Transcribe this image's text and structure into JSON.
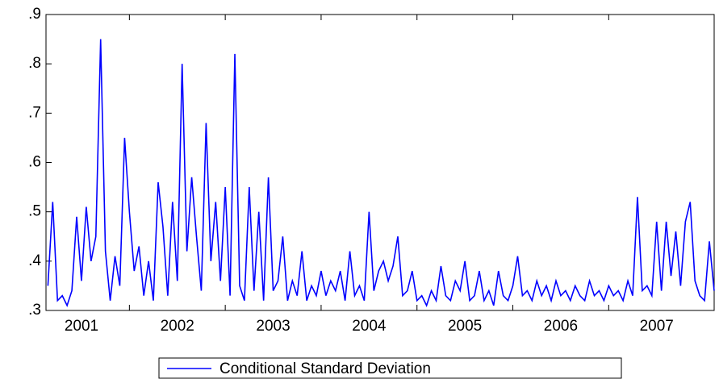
{
  "chart_data": {
    "type": "line",
    "x": [
      2001.15,
      2001.2,
      2001.25,
      2001.3,
      2001.35,
      2001.4,
      2001.45,
      2001.5,
      2001.55,
      2001.6,
      2001.65,
      2001.7,
      2001.75,
      2001.8,
      2001.85,
      2001.9,
      2001.95,
      2002.0,
      2002.05,
      2002.1,
      2002.15,
      2002.2,
      2002.25,
      2002.3,
      2002.35,
      2002.4,
      2002.45,
      2002.5,
      2002.55,
      2002.6,
      2002.65,
      2002.7,
      2002.75,
      2002.8,
      2002.85,
      2002.9,
      2002.95,
      2003.0,
      2003.05,
      2003.1,
      2003.15,
      2003.2,
      2003.25,
      2003.3,
      2003.35,
      2003.4,
      2003.45,
      2003.5,
      2003.55,
      2003.6,
      2003.65,
      2003.7,
      2003.75,
      2003.8,
      2003.85,
      2003.9,
      2003.95,
      2004.0,
      2004.05,
      2004.1,
      2004.15,
      2004.2,
      2004.25,
      2004.3,
      2004.35,
      2004.4,
      2004.45,
      2004.5,
      2004.55,
      2004.6,
      2004.65,
      2004.7,
      2004.75,
      2004.8,
      2004.85,
      2004.9,
      2004.95,
      2005.0,
      2005.05,
      2005.1,
      2005.15,
      2005.2,
      2005.25,
      2005.3,
      2005.35,
      2005.4,
      2005.45,
      2005.5,
      2005.55,
      2005.6,
      2005.65,
      2005.7,
      2005.75,
      2005.8,
      2005.85,
      2005.9,
      2005.95,
      2006.0,
      2006.05,
      2006.1,
      2006.15,
      2006.2,
      2006.25,
      2006.3,
      2006.35,
      2006.4,
      2006.45,
      2006.5,
      2006.55,
      2006.6,
      2006.65,
      2006.7,
      2006.75,
      2006.8,
      2006.85,
      2006.9,
      2006.95,
      2007.0,
      2007.05,
      2007.1,
      2007.15,
      2007.2,
      2007.25,
      2007.3,
      2007.35,
      2007.4,
      2007.45,
      2007.5,
      2007.55,
      2007.6,
      2007.65,
      2007.7,
      2007.75,
      2007.8,
      2007.85,
      2007.9,
      2007.95,
      2008.0,
      2008.05,
      2008.1
    ],
    "series": [
      {
        "name": "Conditional Standard Deviation",
        "color": "#0000ff",
        "values": [
          0.35,
          0.52,
          0.32,
          0.33,
          0.31,
          0.34,
          0.49,
          0.36,
          0.51,
          0.4,
          0.45,
          0.85,
          0.42,
          0.32,
          0.41,
          0.35,
          0.65,
          0.5,
          0.38,
          0.43,
          0.33,
          0.4,
          0.32,
          0.56,
          0.47,
          0.33,
          0.52,
          0.36,
          0.8,
          0.42,
          0.57,
          0.45,
          0.34,
          0.68,
          0.4,
          0.52,
          0.36,
          0.55,
          0.33,
          0.82,
          0.35,
          0.32,
          0.55,
          0.34,
          0.5,
          0.32,
          0.57,
          0.34,
          0.36,
          0.45,
          0.32,
          0.36,
          0.33,
          0.42,
          0.32,
          0.35,
          0.33,
          0.38,
          0.33,
          0.36,
          0.34,
          0.38,
          0.32,
          0.42,
          0.33,
          0.35,
          0.32,
          0.5,
          0.34,
          0.38,
          0.4,
          0.36,
          0.39,
          0.45,
          0.33,
          0.34,
          0.38,
          0.32,
          0.33,
          0.31,
          0.34,
          0.32,
          0.39,
          0.33,
          0.32,
          0.36,
          0.34,
          0.4,
          0.32,
          0.33,
          0.38,
          0.32,
          0.34,
          0.31,
          0.38,
          0.33,
          0.32,
          0.35,
          0.41,
          0.33,
          0.34,
          0.32,
          0.36,
          0.33,
          0.35,
          0.32,
          0.36,
          0.33,
          0.34,
          0.32,
          0.35,
          0.33,
          0.32,
          0.36,
          0.33,
          0.34,
          0.32,
          0.35,
          0.33,
          0.34,
          0.32,
          0.36,
          0.33,
          0.53,
          0.34,
          0.35,
          0.33,
          0.48,
          0.34,
          0.48,
          0.37,
          0.46,
          0.35,
          0.48,
          0.52,
          0.36,
          0.33,
          0.32,
          0.44,
          0.34
        ]
      }
    ],
    "xlim": [
      2001.13,
      2008.1
    ],
    "xticks": [
      2001,
      2002,
      2003,
      2004,
      2005,
      2006,
      2007
    ],
    "ylim": [
      0.3,
      0.9
    ],
    "yticks": [
      {
        "value": 0.3,
        "label": ".3"
      },
      {
        "value": 0.4,
        "label": ".4"
      },
      {
        "value": 0.5,
        "label": ".5"
      },
      {
        "value": 0.6,
        "label": ".6"
      },
      {
        "value": 0.7,
        "label": ".7"
      },
      {
        "value": 0.8,
        "label": ".8"
      },
      {
        "value": 0.9,
        "label": ".9"
      }
    ],
    "legend": "bottom"
  }
}
